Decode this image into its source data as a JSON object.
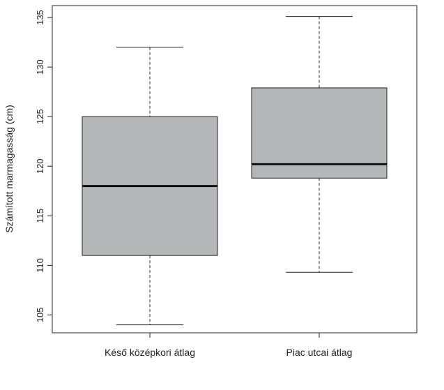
{
  "chart_data": {
    "type": "boxplot",
    "title": "",
    "xlabel": "",
    "ylabel": "Számított marmagasság (cm)",
    "ylim": [
      103.2,
      136.2
    ],
    "yticks": [
      105,
      110,
      115,
      120,
      125,
      130,
      135
    ],
    "ytick_labels": [
      "105",
      "110",
      "115",
      "120",
      "125",
      "130",
      "135"
    ],
    "categories": [
      "Késő középkori átlag",
      "Piac utcai átlag"
    ],
    "boxes": [
      {
        "category": "Késő középkori átlag",
        "whisker_low": 104,
        "q1": 111,
        "median": 118,
        "q3": 125,
        "whisker_high": 132
      },
      {
        "category": "Piac utcai átlag",
        "whisker_low": 109.3,
        "q1": 118.8,
        "median": 120.2,
        "q3": 127.9,
        "whisker_high": 135.1
      }
    ],
    "box_color": "#b5b6b8",
    "grid": false
  }
}
